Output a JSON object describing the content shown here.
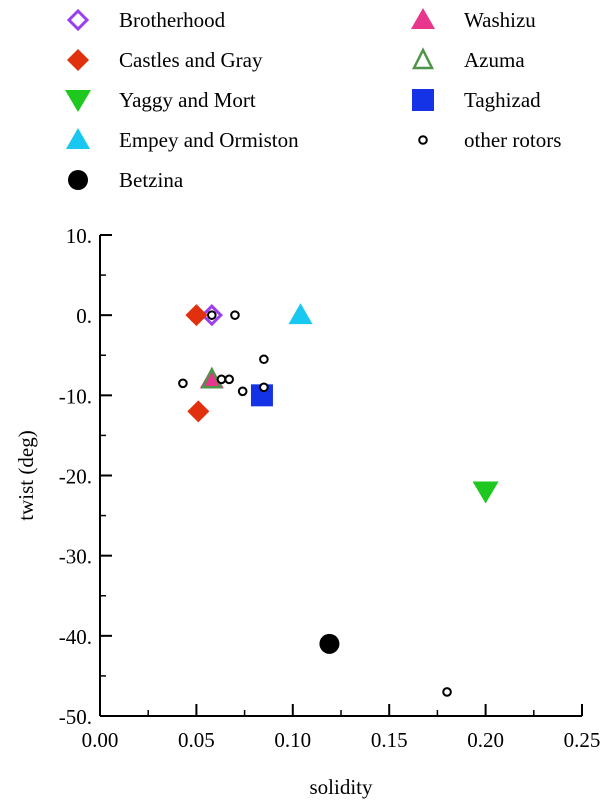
{
  "chart_data": {
    "type": "scatter",
    "xlabel": "solidity",
    "ylabel": "twist (deg)",
    "xlim": [
      0.0,
      0.25
    ],
    "ylim": [
      -50,
      10
    ],
    "x_ticks": [
      "0.00",
      "0.05",
      "0.10",
      "0.15",
      "0.20",
      "0.25"
    ],
    "y_ticks": [
      "10.",
      "0.",
      "-10.",
      "-20.",
      "-30.",
      "-40.",
      "-50."
    ],
    "grid": false,
    "legend_position": "top",
    "series": [
      {
        "name": "Brotherhood",
        "marker": "diamond-open",
        "color": "#9b3ef0",
        "points": [
          {
            "x": 0.058,
            "y": 0.0
          }
        ]
      },
      {
        "name": "Castles and Gray",
        "marker": "diamond",
        "color": "#e0300e",
        "points": [
          {
            "x": 0.05,
            "y": 0.0
          },
          {
            "x": 0.051,
            "y": -12.0
          }
        ]
      },
      {
        "name": "Yaggy and Mort",
        "marker": "triangle-down",
        "color": "#1ec81e",
        "points": [
          {
            "x": 0.2,
            "y": -22.0
          }
        ]
      },
      {
        "name": "Empey and Ormiston",
        "marker": "triangle-up",
        "color": "#19c8f0",
        "points": [
          {
            "x": 0.104,
            "y": 0.0
          }
        ]
      },
      {
        "name": "Betzina",
        "marker": "circle",
        "color": "#000000",
        "points": [
          {
            "x": 0.119,
            "y": -41.0
          }
        ]
      },
      {
        "name": "Washizu",
        "marker": "triangle-up",
        "color": "#e8368c",
        "points": [
          {
            "x": 0.058,
            "y": -8.0
          }
        ]
      },
      {
        "name": "Azuma",
        "marker": "triangle-up-open",
        "color": "#4f9448",
        "points": [
          {
            "x": 0.058,
            "y": -8.0
          }
        ]
      },
      {
        "name": "Taghizad",
        "marker": "square",
        "color": "#1432e6",
        "points": [
          {
            "x": 0.084,
            "y": -10.0
          }
        ]
      },
      {
        "name": "other rotors",
        "marker": "circle-open",
        "color": "#000000",
        "points": [
          {
            "x": 0.058,
            "y": 0.0
          },
          {
            "x": 0.07,
            "y": 0.0
          },
          {
            "x": 0.043,
            "y": -8.5
          },
          {
            "x": 0.063,
            "y": -8.0
          },
          {
            "x": 0.067,
            "y": -8.0
          },
          {
            "x": 0.074,
            "y": -9.5
          },
          {
            "x": 0.085,
            "y": -5.5
          },
          {
            "x": 0.085,
            "y": -9.0
          },
          {
            "x": 0.18,
            "y": -47.0
          }
        ]
      }
    ]
  }
}
